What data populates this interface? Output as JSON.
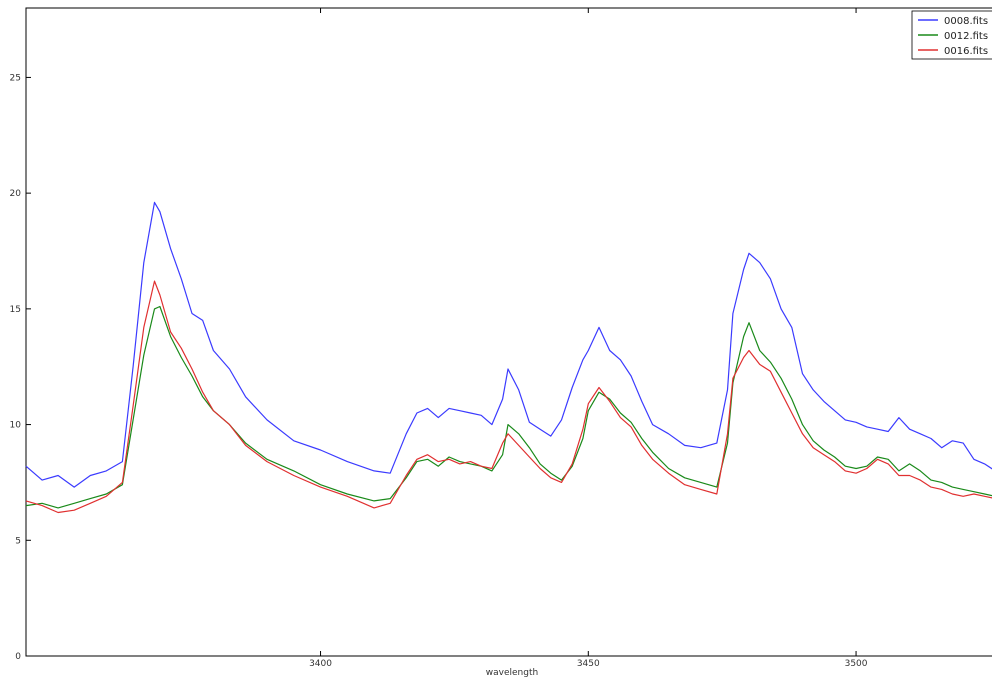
{
  "chart_data": {
    "type": "line",
    "title": "",
    "xlabel": "wavelength",
    "ylabel": "",
    "xlim": [
      3345,
      3528
    ],
    "ylim": [
      0,
      28
    ],
    "xticks": [
      3400,
      3450,
      3500
    ],
    "yticks": [
      0,
      5,
      10,
      15,
      20,
      25
    ],
    "grid": false,
    "legend": "top-right",
    "series": [
      {
        "name": "0008.fits",
        "color": "#3b3bff",
        "x": [
          3345,
          3348,
          3351,
          3354,
          3357,
          3360,
          3363,
          3365,
          3367,
          3369,
          3370,
          3372,
          3374,
          3376,
          3378,
          3380,
          3383,
          3386,
          3390,
          3395,
          3400,
          3405,
          3410,
          3413,
          3416,
          3418,
          3420,
          3422,
          3424,
          3426,
          3428,
          3430,
          3432,
          3434,
          3435,
          3437,
          3439,
          3441,
          3443,
          3445,
          3447,
          3449,
          3450,
          3452,
          3454,
          3456,
          3458,
          3460,
          3462,
          3465,
          3468,
          3471,
          3474,
          3476,
          3477,
          3479,
          3480,
          3482,
          3484,
          3486,
          3488,
          3490,
          3492,
          3494,
          3496,
          3498,
          3500,
          3502,
          3504,
          3506,
          3508,
          3510,
          3512,
          3514,
          3516,
          3518,
          3520,
          3522,
          3524,
          3526,
          3528
        ],
        "values": [
          8.2,
          7.6,
          7.8,
          7.3,
          7.8,
          8.0,
          8.4,
          12.5,
          17.0,
          19.6,
          19.2,
          17.6,
          16.3,
          14.8,
          14.5,
          13.2,
          12.4,
          11.2,
          10.2,
          9.3,
          8.9,
          8.4,
          8.0,
          7.9,
          9.6,
          10.5,
          10.7,
          10.3,
          10.7,
          10.6,
          10.5,
          10.4,
          10.0,
          11.1,
          12.4,
          11.5,
          10.1,
          9.8,
          9.5,
          10.2,
          11.6,
          12.8,
          13.2,
          14.2,
          13.2,
          12.8,
          12.1,
          11.0,
          10.0,
          9.6,
          9.1,
          9.0,
          9.2,
          11.5,
          14.8,
          16.7,
          17.4,
          17.0,
          16.3,
          15.0,
          14.2,
          12.2,
          11.5,
          11.0,
          10.6,
          10.2,
          10.1,
          9.9,
          9.8,
          9.7,
          10.3,
          9.8,
          9.6,
          9.4,
          9.0,
          9.3,
          9.2,
          8.5,
          8.3,
          8.0,
          7.8
        ]
      },
      {
        "name": "0012.fits",
        "color": "#1a8a1a",
        "x": [
          3345,
          3348,
          3351,
          3354,
          3357,
          3360,
          3363,
          3365,
          3367,
          3369,
          3370,
          3372,
          3374,
          3376,
          3378,
          3380,
          3383,
          3386,
          3390,
          3395,
          3400,
          3405,
          3410,
          3413,
          3416,
          3418,
          3420,
          3422,
          3424,
          3426,
          3428,
          3430,
          3432,
          3434,
          3435,
          3437,
          3439,
          3441,
          3443,
          3445,
          3447,
          3449,
          3450,
          3452,
          3454,
          3456,
          3458,
          3460,
          3462,
          3465,
          3468,
          3471,
          3474,
          3476,
          3477,
          3479,
          3480,
          3482,
          3484,
          3486,
          3488,
          3490,
          3492,
          3494,
          3496,
          3498,
          3500,
          3502,
          3504,
          3506,
          3508,
          3510,
          3512,
          3514,
          3516,
          3518,
          3520,
          3522,
          3524,
          3526,
          3528
        ],
        "values": [
          6.5,
          6.6,
          6.4,
          6.6,
          6.8,
          7.0,
          7.4,
          10.2,
          13.0,
          15.0,
          15.1,
          13.8,
          12.9,
          12.1,
          11.2,
          10.6,
          10.0,
          9.2,
          8.5,
          8.0,
          7.4,
          7.0,
          6.7,
          6.8,
          7.7,
          8.4,
          8.5,
          8.2,
          8.6,
          8.4,
          8.3,
          8.2,
          8.0,
          8.7,
          10.0,
          9.6,
          9.0,
          8.3,
          7.9,
          7.6,
          8.2,
          9.4,
          10.6,
          11.4,
          11.1,
          10.5,
          10.1,
          9.4,
          8.8,
          8.1,
          7.7,
          7.5,
          7.3,
          9.2,
          11.8,
          13.8,
          14.4,
          13.2,
          12.7,
          12.0,
          11.1,
          10.0,
          9.3,
          8.9,
          8.6,
          8.2,
          8.1,
          8.2,
          8.6,
          8.5,
          8.0,
          8.3,
          8.0,
          7.6,
          7.5,
          7.3,
          7.2,
          7.1,
          7.0,
          6.9,
          6.8
        ]
      },
      {
        "name": "0016.fits",
        "color": "#e03030",
        "x": [
          3345,
          3348,
          3351,
          3354,
          3357,
          3360,
          3363,
          3365,
          3367,
          3369,
          3370,
          3372,
          3374,
          3376,
          3378,
          3380,
          3383,
          3386,
          3390,
          3395,
          3400,
          3405,
          3410,
          3413,
          3416,
          3418,
          3420,
          3422,
          3424,
          3426,
          3428,
          3430,
          3432,
          3434,
          3435,
          3437,
          3439,
          3441,
          3443,
          3445,
          3447,
          3449,
          3450,
          3452,
          3454,
          3456,
          3458,
          3460,
          3462,
          3465,
          3468,
          3471,
          3474,
          3476,
          3477,
          3479,
          3480,
          3482,
          3484,
          3486,
          3488,
          3490,
          3492,
          3494,
          3496,
          3498,
          3500,
          3502,
          3504,
          3506,
          3508,
          3510,
          3512,
          3514,
          3516,
          3518,
          3520,
          3522,
          3524,
          3526,
          3528
        ],
        "values": [
          6.7,
          6.5,
          6.2,
          6.3,
          6.6,
          6.9,
          7.5,
          10.8,
          14.2,
          16.2,
          15.6,
          14.0,
          13.3,
          12.4,
          11.4,
          10.6,
          10.0,
          9.1,
          8.4,
          7.8,
          7.3,
          6.9,
          6.4,
          6.6,
          7.8,
          8.5,
          8.7,
          8.4,
          8.5,
          8.3,
          8.4,
          8.2,
          8.1,
          9.2,
          9.6,
          9.1,
          8.6,
          8.1,
          7.7,
          7.5,
          8.3,
          9.8,
          10.9,
          11.6,
          11.0,
          10.3,
          9.9,
          9.1,
          8.5,
          7.9,
          7.4,
          7.2,
          7.0,
          9.6,
          12.0,
          12.9,
          13.2,
          12.6,
          12.3,
          11.4,
          10.5,
          9.6,
          9.0,
          8.7,
          8.4,
          8.0,
          7.9,
          8.1,
          8.5,
          8.3,
          7.8,
          7.8,
          7.6,
          7.3,
          7.2,
          7.0,
          6.9,
          7.0,
          6.9,
          6.8,
          7.1
        ]
      }
    ]
  }
}
